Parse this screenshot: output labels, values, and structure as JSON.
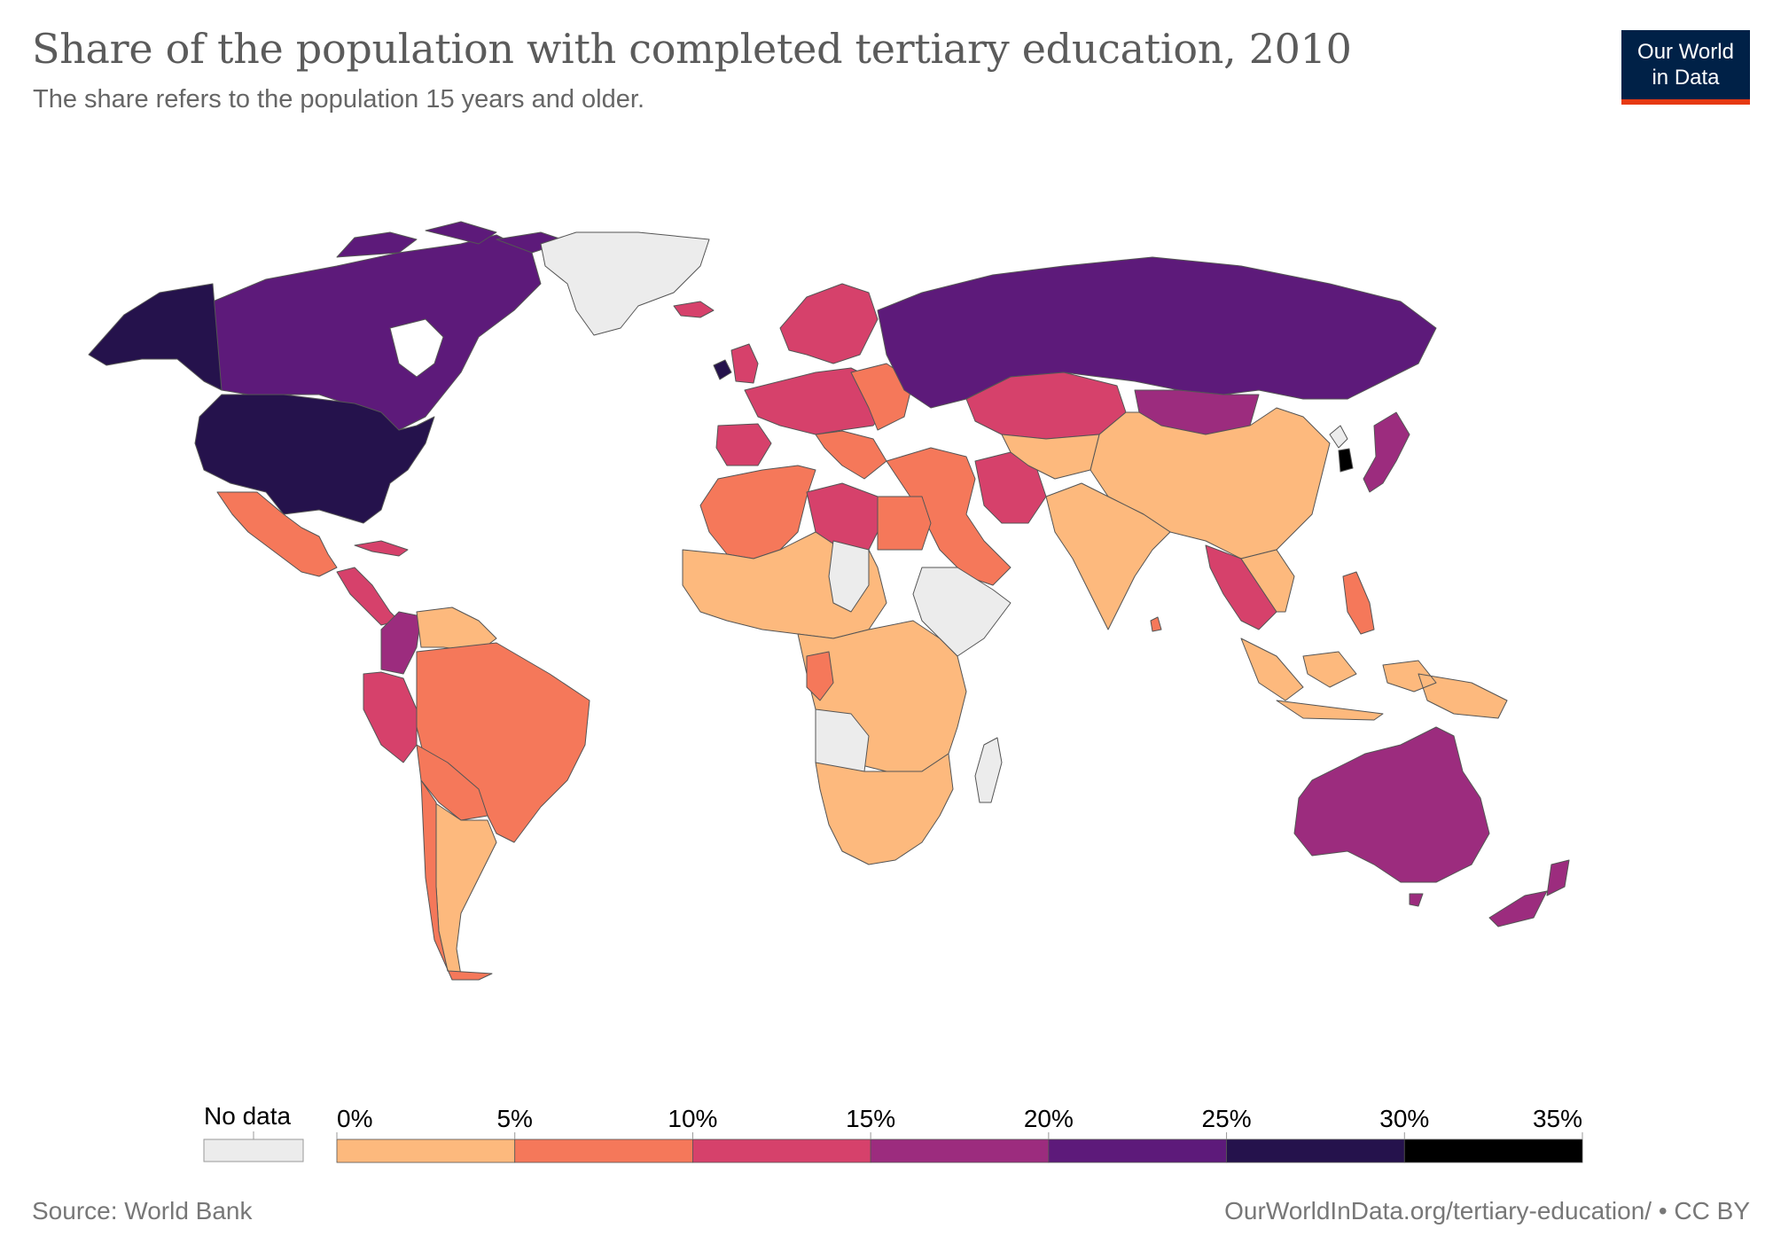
{
  "header": {
    "title": "Share of the population with completed tertiary education, 2010",
    "subtitle": "The share refers to the population 15 years and older."
  },
  "logo": {
    "line1": "Our World",
    "line2": "in Data"
  },
  "legend": {
    "no_data_label": "No data",
    "no_data_color": "#ececec",
    "ticks": [
      "0%",
      "5%",
      "10%",
      "15%",
      "20%",
      "25%",
      "30%",
      "35%"
    ],
    "colors": [
      "#fdb97d",
      "#f5785a",
      "#d6416b",
      "#9c2c7e",
      "#5d1a7a",
      "#25124c",
      "#000000"
    ]
  },
  "footer": {
    "source": "Source: World Bank",
    "url": "OurWorldInData.org/tertiary-education/ • CC BY"
  },
  "chart_data": {
    "type": "choropleth map",
    "year": "2010",
    "bins": [
      {
        "range": "0%-5%",
        "color": "#fdb97d"
      },
      {
        "range": "5%-10%",
        "color": "#f5785a"
      },
      {
        "range": "10%-15%",
        "color": "#d6416b"
      },
      {
        "range": "15%-20%",
        "color": "#9c2c7e"
      },
      {
        "range": "20%-25%",
        "color": "#5d1a7a"
      },
      {
        "range": "25%-30%",
        "color": "#25124c"
      },
      {
        "range": "30%-35%",
        "color": "#000000"
      }
    ],
    "regions": [
      {
        "name": "United States",
        "bin": "25%-30%"
      },
      {
        "name": "Canada",
        "bin": "20%-25%"
      },
      {
        "name": "Alaska",
        "bin": "25%-30%"
      },
      {
        "name": "Greenland",
        "bin": "No data"
      },
      {
        "name": "Mexico",
        "bin": "5%-10%"
      },
      {
        "name": "Central America",
        "bin": "10%-15%"
      },
      {
        "name": "Cuba",
        "bin": "10%-15%"
      },
      {
        "name": "Colombia/Venezuela",
        "bin": "15%-20%"
      },
      {
        "name": "Peru",
        "bin": "10%-15%"
      },
      {
        "name": "Brazil",
        "bin": "5%-10%"
      },
      {
        "name": "Argentina",
        "bin": "0%-5%"
      },
      {
        "name": "Chile",
        "bin": "5%-10%"
      },
      {
        "name": "Western Europe",
        "bin": "10%-15%"
      },
      {
        "name": "Ireland",
        "bin": "25%-30%"
      },
      {
        "name": "Russia",
        "bin": "20%-25%"
      },
      {
        "name": "Kazakhstan",
        "bin": "10%-15%"
      },
      {
        "name": "Mongolia",
        "bin": "15%-20%"
      },
      {
        "name": "China",
        "bin": "0%-5%"
      },
      {
        "name": "India",
        "bin": "0%-5%"
      },
      {
        "name": "Japan",
        "bin": "15%-20%"
      },
      {
        "name": "South Korea",
        "bin": "30%-35%"
      },
      {
        "name": "Southeast Asia",
        "bin": "10%-15%"
      },
      {
        "name": "Indonesia",
        "bin": "0%-5%"
      },
      {
        "name": "Middle East",
        "bin": "5%-10%"
      },
      {
        "name": "Iran",
        "bin": "10%-15%"
      },
      {
        "name": "North Africa",
        "bin": "5%-10%"
      },
      {
        "name": "Libya",
        "bin": "10%-15%"
      },
      {
        "name": "Sub-Saharan Africa",
        "bin": "0%-5%"
      },
      {
        "name": "Angola",
        "bin": "No data"
      },
      {
        "name": "Horn of Africa",
        "bin": "No data"
      },
      {
        "name": "Madagascar",
        "bin": "No data"
      },
      {
        "name": "Australia",
        "bin": "15%-20%"
      },
      {
        "name": "New Zealand",
        "bin": "15%-20%"
      }
    ]
  }
}
